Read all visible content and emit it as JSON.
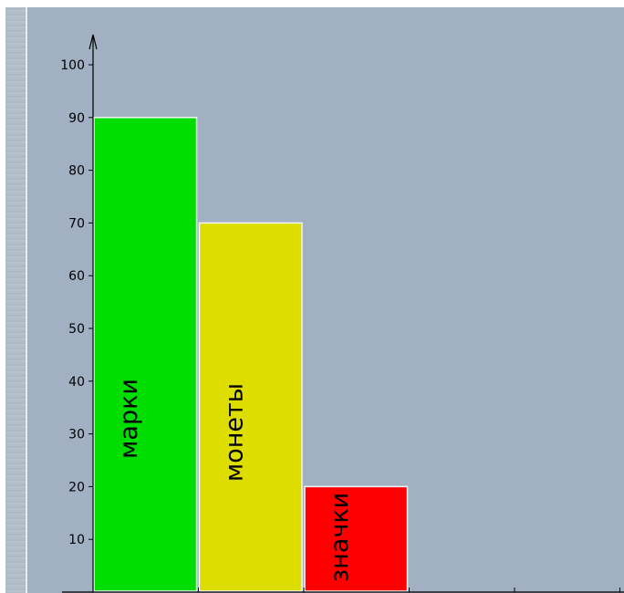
{
  "chart_data": {
    "type": "bar",
    "categories": [
      "марки",
      "монеты",
      "значки"
    ],
    "values": [
      90,
      70,
      20
    ],
    "colors": [
      "#00dd00",
      "#dddd00",
      "#ff0000"
    ],
    "bar_outline": "#f4f4f4",
    "background": "#a1b1c3",
    "yticks": [
      "10",
      "20",
      "30",
      "40",
      "50",
      "60",
      "70",
      "80",
      "90",
      "100"
    ],
    "ylim": [
      0,
      100
    ],
    "x_slots": 5,
    "title": "",
    "xlabel": "",
    "ylabel": ""
  }
}
